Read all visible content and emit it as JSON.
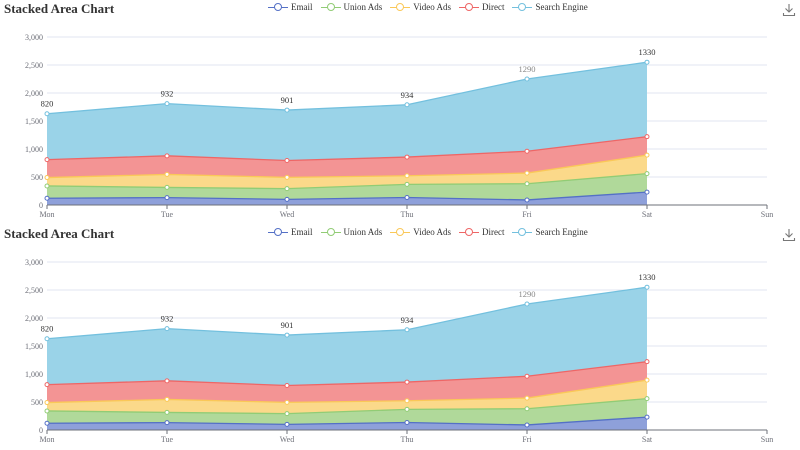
{
  "chart_data": [
    {
      "type": "area",
      "stacked": true,
      "title": "Stacked Area Chart",
      "toolbox": {
        "icon": "download-icon"
      },
      "legend_position": "top-center",
      "grid": true,
      "categories": [
        "Mon",
        "Tue",
        "Wed",
        "Thu",
        "Fri",
        "Sat",
        "Sun"
      ],
      "ylim": [
        0,
        3000
      ],
      "yticks": [
        "0",
        "500",
        "1,000",
        "1,500",
        "2,000",
        "2,500",
        "3,000"
      ],
      "series": [
        {
          "name": "Email",
          "color": "#5470c6",
          "fill": "#8ea0da",
          "values": [
            120,
            132,
            101,
            134,
            90,
            230,
            null
          ]
        },
        {
          "name": "Union Ads",
          "color": "#91cc75",
          "fill": "#b0d99a",
          "values": [
            220,
            182,
            191,
            234,
            290,
            330,
            null
          ]
        },
        {
          "name": "Video Ads",
          "color": "#fac858",
          "fill": "#fbd98a",
          "values": [
            150,
            232,
            201,
            154,
            190,
            330,
            null
          ]
        },
        {
          "name": "Direct",
          "color": "#ee6666",
          "fill": "#f39494",
          "values": [
            320,
            332,
            301,
            334,
            390,
            330,
            null
          ]
        },
        {
          "name": "Search Engine",
          "color": "#73c0de",
          "fill": "#9ad3e8",
          "values": [
            820,
            932,
            901,
            934,
            1290,
            1330,
            null
          ]
        }
      ]
    },
    {
      "type": "area",
      "stacked": true,
      "title": "Stacked Area Chart",
      "toolbox": {
        "icon": "download-icon"
      },
      "legend_position": "top-center",
      "grid": true,
      "categories": [
        "Mon",
        "Tue",
        "Wed",
        "Thu",
        "Fri",
        "Sat",
        "Sun"
      ],
      "ylim": [
        0,
        3000
      ],
      "yticks": [
        "0",
        "500",
        "1,000",
        "1,500",
        "2,000",
        "2,500",
        "3,000"
      ],
      "series": [
        {
          "name": "Email",
          "color": "#5470c6",
          "fill": "#8ea0da",
          "values": [
            120,
            132,
            101,
            134,
            90,
            230,
            null
          ]
        },
        {
          "name": "Union Ads",
          "color": "#91cc75",
          "fill": "#b0d99a",
          "values": [
            220,
            182,
            191,
            234,
            290,
            330,
            null
          ]
        },
        {
          "name": "Video Ads",
          "color": "#fac858",
          "fill": "#fbd98a",
          "values": [
            150,
            232,
            201,
            154,
            190,
            330,
            null
          ]
        },
        {
          "name": "Direct",
          "color": "#ee6666",
          "fill": "#f39494",
          "values": [
            320,
            332,
            301,
            334,
            390,
            330,
            null
          ]
        },
        {
          "name": "Search Engine",
          "color": "#73c0de",
          "fill": "#9ad3e8",
          "values": [
            820,
            932,
            901,
            934,
            1290,
            1330,
            null
          ]
        }
      ]
    }
  ]
}
